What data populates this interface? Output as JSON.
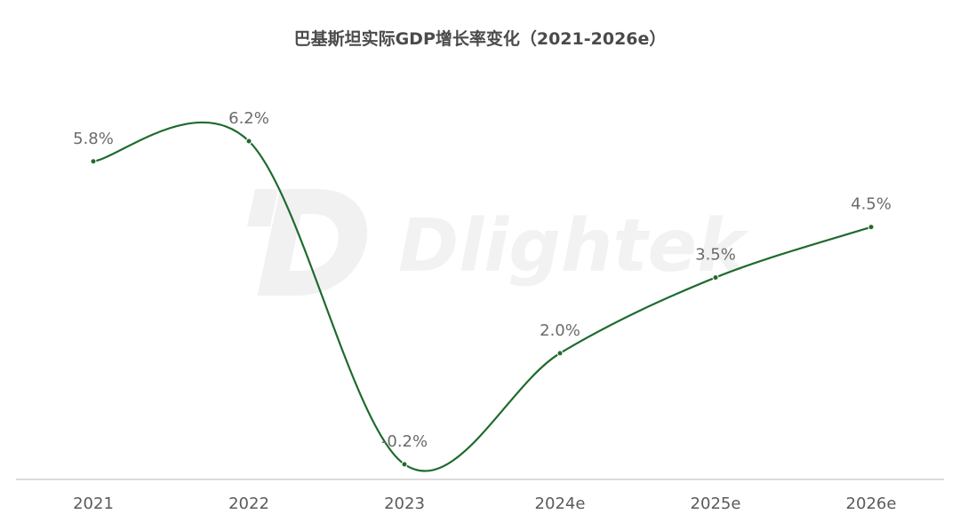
{
  "chart_data": {
    "type": "line",
    "title": "巴基斯坦实际GDP增长率变化（2021-2026e）",
    "categories": [
      "2021",
      "2022",
      "2023",
      "2024e",
      "2025e",
      "2026e"
    ],
    "series": [
      {
        "name": "实际GDP增长率",
        "values": [
          5.8,
          6.2,
          -0.2,
          2.0,
          3.5,
          4.5
        ],
        "labels": [
          "5.8%",
          "6.2%",
          "-0.2%",
          "2.0%",
          "3.5%",
          "4.5%"
        ]
      }
    ],
    "xlabel": "",
    "ylabel": "",
    "ylim": [
      -0.2,
      6.2
    ],
    "grid": false,
    "legend": "none",
    "line_color": "#1f6b2e"
  },
  "watermark": {
    "text": "Dlightek"
  }
}
